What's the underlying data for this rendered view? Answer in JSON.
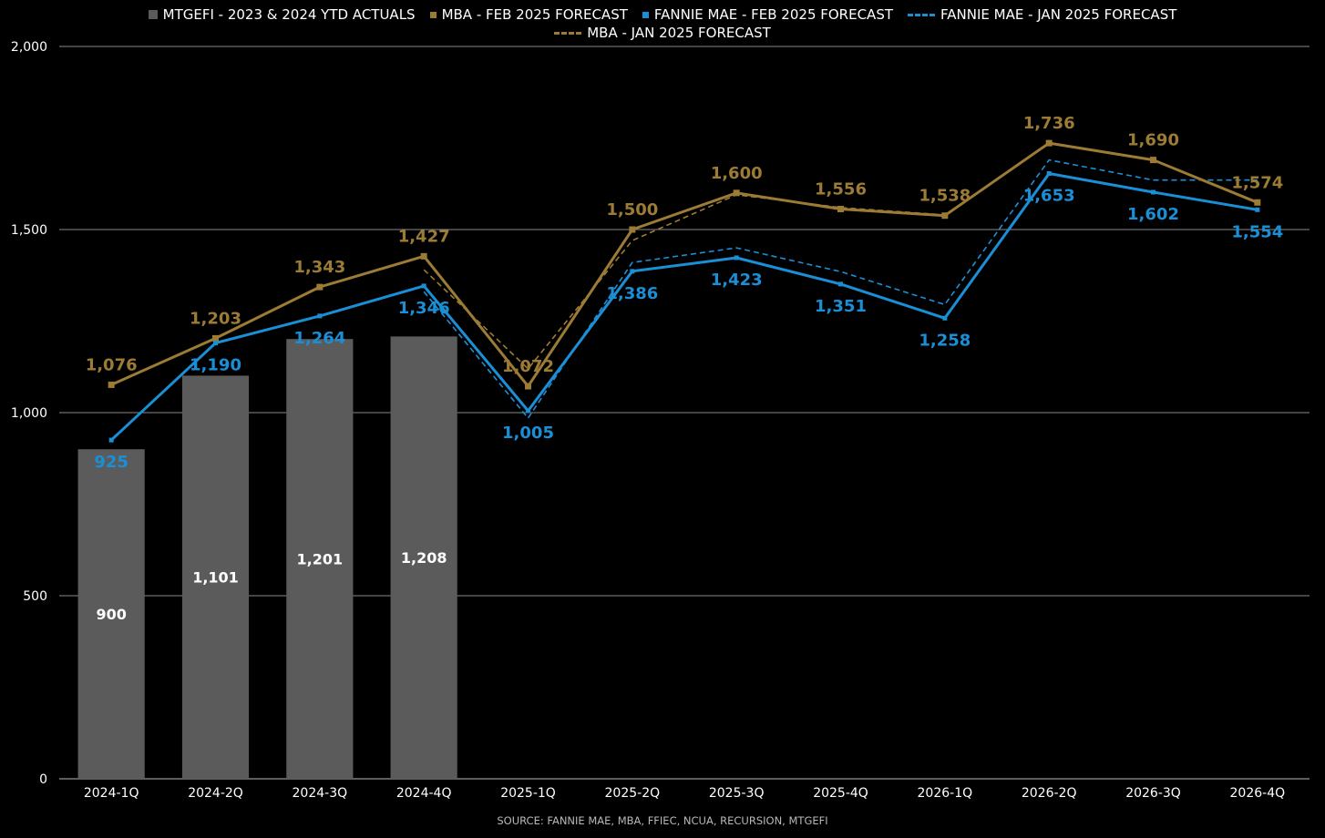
{
  "chart_data": {
    "type": "bar",
    "categories": [
      "2024-1Q",
      "2024-2Q",
      "2024-3Q",
      "2024-4Q",
      "2025-1Q",
      "2025-2Q",
      "2025-3Q",
      "2025-4Q",
      "2026-1Q",
      "2026-2Q",
      "2026-3Q",
      "2026-4Q"
    ],
    "ylim": [
      0,
      2000
    ],
    "yticks": [
      0,
      500,
      1000,
      1500,
      2000
    ],
    "ytick_labels": [
      "0",
      "500",
      "1,000",
      "1,500",
      "2,000"
    ],
    "grid": true,
    "legend_position": "top-center",
    "source": "SOURCE: FANNIE MAE, MBA, FFIEC, NCUA, RECURSION, MTGEFI",
    "series": [
      {
        "name": "MTGEFI - 2023 & 2024 YTD ACTUALS",
        "kind": "bar",
        "color": "#5b5b5b",
        "label_color": "#ffffff",
        "values": [
          900,
          1101,
          1201,
          1208,
          null,
          null,
          null,
          null,
          null,
          null,
          null,
          null
        ],
        "labels": [
          "900",
          "1,101",
          "1,201",
          "1,208"
        ]
      },
      {
        "name": "MBA - FEB 2025 FORECAST",
        "kind": "line",
        "color": "#9c7b35",
        "label_color": "#9c7b35",
        "values": [
          1076,
          1203,
          1343,
          1427,
          1072,
          1500,
          1600,
          1556,
          1538,
          1736,
          1690,
          1574
        ],
        "labels": [
          "1,076",
          "1,203",
          "1,343",
          "1,427",
          "1,072",
          "1,500",
          "1,600",
          "1,556",
          "1,538",
          "1,736",
          "1,690",
          "1,574"
        ]
      },
      {
        "name": "FANNIE MAE - FEB 2025 FORECAST",
        "kind": "line",
        "color": "#1b8fd6",
        "label_color": "#1b8fd6",
        "values": [
          925,
          1190,
          1264,
          1346,
          1005,
          1386,
          1423,
          1351,
          1258,
          1653,
          1602,
          1554
        ],
        "labels": [
          "925",
          "1,190",
          "1,264",
          "1,346",
          "1,005",
          "1,386",
          "1,423",
          "1,351",
          "1,258",
          "1,653",
          "1,602",
          "1,554"
        ]
      },
      {
        "name": "FANNIE MAE - JAN 2025 FORECAST",
        "kind": "dashed-line",
        "color": "#1b8fd6",
        "values": [
          null,
          null,
          null,
          1330,
          985,
          1410,
          1450,
          1385,
          1295,
          1690,
          1635,
          1635
        ]
      },
      {
        "name": "MBA - JAN 2025 FORECAST",
        "kind": "dashed-line",
        "color": "#9c7b35",
        "values": [
          null,
          null,
          null,
          1390,
          1120,
          1470,
          1595,
          1560,
          1540,
          1735,
          1690,
          1575
        ]
      }
    ]
  }
}
